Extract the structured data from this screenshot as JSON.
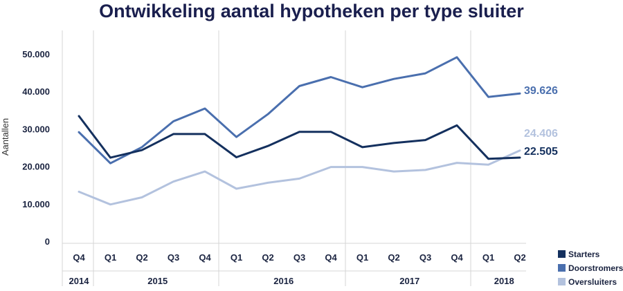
{
  "chart_data": {
    "type": "line",
    "title": "Ontwikkeling aantal hypotheken per type sluiter",
    "ylabel": "Aantallen",
    "xlabel": "",
    "ylim": [
      0,
      55000
    ],
    "yticks": [
      0,
      10000,
      20000,
      30000,
      40000,
      50000
    ],
    "ytick_labels": [
      "0",
      "10.000",
      "20.000",
      "30.000",
      "40.000",
      "50.000"
    ],
    "x": [
      "Q4 2014",
      "Q1 2015",
      "Q2 2015",
      "Q3 2015",
      "Q4 2015",
      "Q1 2016",
      "Q2 2016",
      "Q3 2016",
      "Q4 2016",
      "Q1 2017",
      "Q2 2017",
      "Q3 2017",
      "Q4 2017",
      "Q1 2018",
      "Q2 2018"
    ],
    "quarters": [
      "Q4",
      "Q1",
      "Q2",
      "Q3",
      "Q4",
      "Q1",
      "Q2",
      "Q3",
      "Q4",
      "Q1",
      "Q2",
      "Q3",
      "Q4",
      "Q1",
      "Q2"
    ],
    "years": [
      {
        "label": "2014",
        "from": 0,
        "to": 0
      },
      {
        "label": "2015",
        "from": 1,
        "to": 4
      },
      {
        "label": "2016",
        "from": 5,
        "to": 8
      },
      {
        "label": "2017",
        "from": 9,
        "to": 12
      },
      {
        "label": "2018",
        "from": 13,
        "to": 14
      }
    ],
    "series": [
      {
        "name": "Starters",
        "color": "#14305e",
        "values": [
          33600,
          22500,
          24500,
          28800,
          28800,
          22600,
          25600,
          29400,
          29400,
          25300,
          26400,
          27200,
          31100,
          22200,
          22505
        ],
        "end_label": "22.505"
      },
      {
        "name": "Doorstromers",
        "color": "#4a6fae",
        "values": [
          29300,
          21000,
          25300,
          32200,
          35600,
          28000,
          34100,
          41600,
          44000,
          41300,
          43500,
          45000,
          49300,
          38700,
          39626
        ],
        "end_label": "39.626"
      },
      {
        "name": "Oversluiters",
        "color": "#b3c2de",
        "values": [
          13400,
          10000,
          11900,
          16100,
          18800,
          14200,
          15800,
          16900,
          20000,
          20000,
          18800,
          19200,
          21100,
          20600,
          24406
        ],
        "end_label": "24.406"
      }
    ],
    "legend_position": "bottom-right",
    "grid": false
  }
}
